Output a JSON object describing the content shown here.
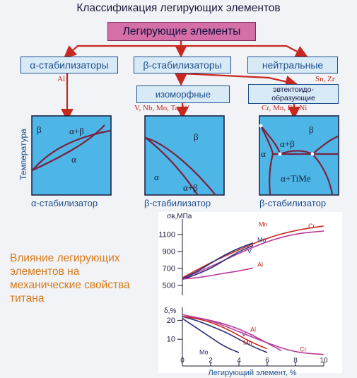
{
  "title": "Классификация легирующих элементов",
  "root": "Легирующие элементы",
  "groups": {
    "alpha": "α-стабилизаторы",
    "beta": "β-стабилизаторы",
    "neutral": "нейтральные"
  },
  "subgroups": {
    "isomorphic": "изоморфные",
    "eutectoid": "эвтектоидо-\nобразующие"
  },
  "elements": {
    "alpha": "Al",
    "neutral": "Sn, Zr",
    "isomorphic": "V, Nb, Mo, Ta, W",
    "eutectoid": "Cr, Mn, Fe, Ni"
  },
  "diagrams": {
    "y_axis_label": "Температура",
    "d1": {
      "caption": "α-стабилизатор",
      "phases": [
        "β",
        "α+β",
        "α"
      ]
    },
    "d2": {
      "caption": "β-стабилизатор",
      "phases": [
        "β",
        "α",
        "α+β"
      ]
    },
    "d3": {
      "caption": "β-стабилизатор",
      "phases": [
        "β",
        "α",
        "α+β",
        "α+TiMe"
      ]
    }
  },
  "influence_text": "Влияние легирующих элементов на механические свойства титана",
  "chart_data": {
    "type": "line",
    "xlabel": "Легирующий элемент, %",
    "x_ticks": [
      0,
      2,
      4,
      6,
      8,
      10
    ],
    "xlim": [
      0,
      10
    ],
    "panels": [
      {
        "ylabel": "σв,МПа",
        "y_ticks": [
          500,
          700,
          900,
          1100
        ],
        "ylim": [
          450,
          1240
        ],
        "series": [
          {
            "name": "Mn",
            "color": "#c8281f",
            "x": [
              0,
              2,
              4,
              6,
              8,
              10
            ],
            "y": [
              590,
              770,
              920,
              1060,
              1150,
              1200
            ]
          },
          {
            "name": "Cr",
            "color": "#b83a9a",
            "x": [
              0,
              2,
              4,
              6,
              8,
              10
            ],
            "y": [
              580,
              720,
              880,
              1020,
              1110,
              1140
            ]
          },
          {
            "name": "Mo",
            "color": "#2a2e7a",
            "x": [
              0,
              1,
              2,
              3,
              4,
              5
            ],
            "y": [
              580,
              660,
              760,
              860,
              940,
              1000
            ]
          },
          {
            "name": "V",
            "color": "#2a2e7a",
            "x": [
              0,
              1,
              2,
              3,
              4,
              5
            ],
            "y": [
              570,
              630,
              700,
              800,
              900,
              970
            ]
          },
          {
            "name": "Al",
            "color": "#b83a9a",
            "x": [
              0,
              1,
              2,
              3,
              4,
              5
            ],
            "y": [
              575,
              590,
              615,
              645,
              670,
              705
            ]
          }
        ]
      },
      {
        "ylabel": "δ,%",
        "y_ticks": [
          10,
          20
        ],
        "ylim": [
          0,
          25
        ],
        "series": [
          {
            "name": "Mo",
            "color": "#2a2e7a",
            "x": [
              0,
              1,
              2,
              3,
              4
            ],
            "y": [
              21,
              16,
              11,
              6,
              3
            ]
          },
          {
            "name": "V",
            "color": "#2a2e7a",
            "x": [
              0,
              1,
              2,
              3,
              4,
              5,
              6
            ],
            "y": [
              22,
              20,
              17,
              14,
              10,
              6,
              3
            ]
          },
          {
            "name": "Al",
            "color": "#b83a9a",
            "x": [
              0,
              1,
              2,
              3,
              4,
              5,
              6,
              7
            ],
            "y": [
              22,
              21.5,
              20,
              18,
              15.5,
              12,
              8,
              4
            ]
          },
          {
            "name": "Mn",
            "color": "#c8281f",
            "x": [
              0,
              1,
              2,
              3,
              4,
              5,
              6
            ],
            "y": [
              22,
              21,
              19,
              16,
              12,
              8,
              5
            ]
          },
          {
            "name": "Cr",
            "color": "#b83a9a",
            "x": [
              0,
              2,
              4,
              6,
              8,
              10
            ],
            "y": [
              23,
              20,
              14,
              8,
              3,
              2
            ]
          }
        ]
      }
    ]
  }
}
